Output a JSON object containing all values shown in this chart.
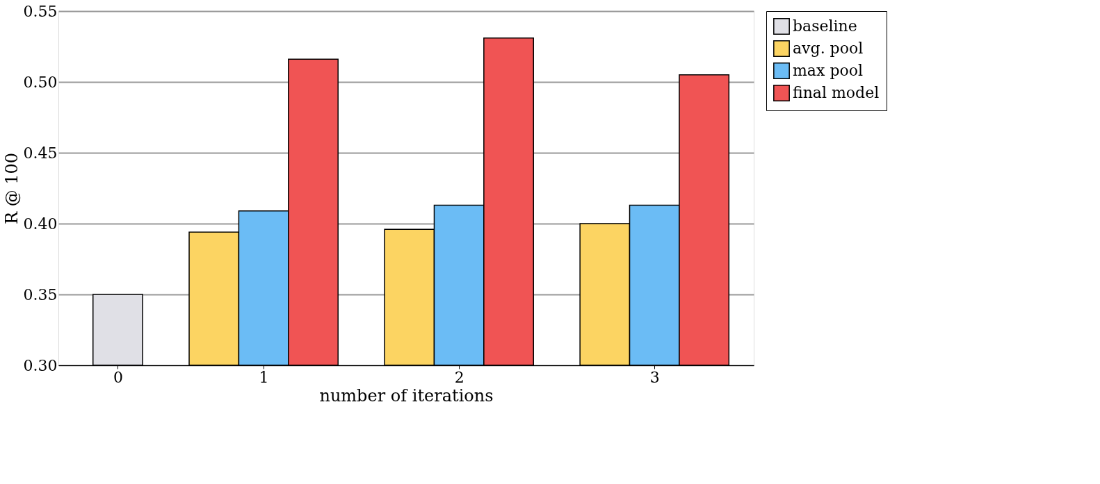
{
  "chart_data": {
    "type": "bar",
    "xlabel": "number of iterations",
    "ylabel": "R @ 100",
    "categories": [
      "0",
      "1",
      "2",
      "3"
    ],
    "series": [
      {
        "name": "baseline",
        "color": "#e0e0e6",
        "values": [
          0.35,
          null,
          null,
          null
        ]
      },
      {
        "name": "avg. pool",
        "color": "#fcd462",
        "values": [
          null,
          0.394,
          0.396,
          0.4
        ]
      },
      {
        "name": "max pool",
        "color": "#6bbcf5",
        "values": [
          null,
          0.409,
          0.413,
          0.413
        ]
      },
      {
        "name": "final model",
        "color": "#f05454",
        "values": [
          null,
          0.516,
          0.531,
          0.505
        ]
      }
    ],
    "ylim": [
      0.3,
      0.55
    ],
    "yticks": [
      {
        "value": 0.3,
        "label": "0.30"
      },
      {
        "value": 0.35,
        "label": "0.35"
      },
      {
        "value": 0.4,
        "label": "0.40"
      },
      {
        "value": 0.45,
        "label": "0.45"
      },
      {
        "value": 0.5,
        "label": "0.50"
      },
      {
        "value": 0.55,
        "label": "0.55"
      }
    ],
    "grid": "y",
    "legend": "right"
  }
}
